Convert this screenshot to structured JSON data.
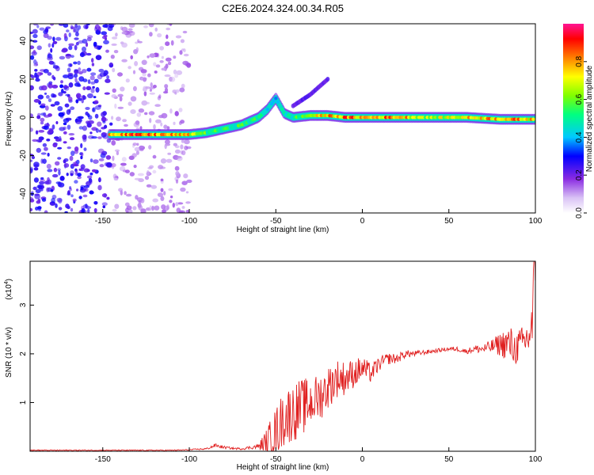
{
  "title": "C2E6.2024.324.00.34.R05",
  "colors": {
    "snr_line": "#e02020",
    "frame": "#000000",
    "colormap": [
      "#ffffff",
      "#c8a8f0",
      "#8a2be2",
      "#0000ff",
      "#00c8ff",
      "#00ff80",
      "#ffff00",
      "#ff8000",
      "#ff0000",
      "#ff1493"
    ]
  },
  "chart_data": [
    {
      "type": "heatmap",
      "title": "C2E6.2024.324.00.34.R05",
      "xlabel": "Height of straight line (km)",
      "ylabel": "Frequency (Hz)",
      "xlim": [
        -192,
        100
      ],
      "ylim": [
        -50,
        49
      ],
      "x_ticks": [
        "-150",
        "-100",
        "-50",
        "0",
        "50",
        "100"
      ],
      "y_ticks": [
        "-40",
        "-20",
        "0",
        "20",
        "40"
      ],
      "colorbar": {
        "label": "Normalized spectral amplitude",
        "range": [
          0,
          1
        ],
        "ticks": [
          "0.0",
          "0.2",
          "0.4",
          "0.6",
          "0.8"
        ]
      },
      "ridge": {
        "x": [
          -145,
          -120,
          -100,
          -90,
          -80,
          -70,
          -60,
          -55,
          -50,
          -45,
          -40,
          -30,
          -20,
          -10,
          0,
          20,
          40,
          60,
          80,
          100
        ],
        "y": [
          -9,
          -9,
          -9,
          -8,
          -6,
          -4,
          0,
          4,
          10,
          2,
          0,
          1,
          1,
          0,
          0,
          0,
          0,
          0,
          -1,
          -1
        ],
        "peak_amplitude": [
          0.9,
          0.9,
          0.8,
          0.6,
          0.55,
          0.6,
          0.55,
          0.5,
          0.45,
          0.5,
          0.55,
          0.7,
          0.85,
          0.9,
          0.85,
          0.9,
          0.7,
          0.8,
          0.9,
          0.8
        ]
      },
      "branch": {
        "x": [
          -40,
          -35,
          -30,
          -25,
          -20
        ],
        "y": [
          6,
          9,
          12,
          16,
          20
        ]
      },
      "noise_region_x": [
        -192,
        -100
      ]
    },
    {
      "type": "line",
      "xlabel": "Height of straight line (km)",
      "ylabel": "SNR (10 * v/v)",
      "y_multiplier": "(x10",
      "y_multiplier_exp": "4",
      "y_multiplier_close": ")",
      "xlim": [
        -192,
        100
      ],
      "ylim": [
        0,
        3.9
      ],
      "x_ticks": [
        "-150",
        "-100",
        "-50",
        "0",
        "50",
        "100"
      ],
      "y_ticks": [
        "1",
        "2",
        "3"
      ],
      "series": [
        {
          "x": [
            -192,
            -150,
            -110,
            -100,
            -90,
            -85,
            -80,
            -75,
            -70,
            -60,
            -55,
            -50,
            -45,
            -40,
            -35,
            -30,
            -25,
            -20,
            -15,
            -10,
            -5,
            0,
            5,
            10,
            15,
            20,
            25,
            30,
            40,
            50,
            55,
            60,
            65,
            70,
            75,
            80,
            85,
            88,
            92,
            95,
            98,
            100
          ],
          "y": [
            0.02,
            0.02,
            0.02,
            0.03,
            0.05,
            0.12,
            0.08,
            0.06,
            0.05,
            0.1,
            0.2,
            0.4,
            0.7,
            0.8,
            0.9,
            1.0,
            1.1,
            1.3,
            1.5,
            1.5,
            1.6,
            1.7,
            1.6,
            1.8,
            1.9,
            1.9,
            2.0,
            2.0,
            2.05,
            2.1,
            2.1,
            2.05,
            2.1,
            2.1,
            2.15,
            2.2,
            2.2,
            2.1,
            2.2,
            2.3,
            2.5,
            3.8
          ],
          "noise_amplitude": [
            0.01,
            0.01,
            0.01,
            0.01,
            0.02,
            0.04,
            0.03,
            0.02,
            0.02,
            0.05,
            0.3,
            0.5,
            0.6,
            0.6,
            0.6,
            0.5,
            0.5,
            0.45,
            0.4,
            0.35,
            0.3,
            0.25,
            0.2,
            0.15,
            0.12,
            0.1,
            0.08,
            0.06,
            0.04,
            0.04,
            0.05,
            0.05,
            0.08,
            0.1,
            0.15,
            0.25,
            0.4,
            0.35,
            0.35,
            0.4,
            0.6,
            1.2
          ]
        }
      ]
    }
  ]
}
